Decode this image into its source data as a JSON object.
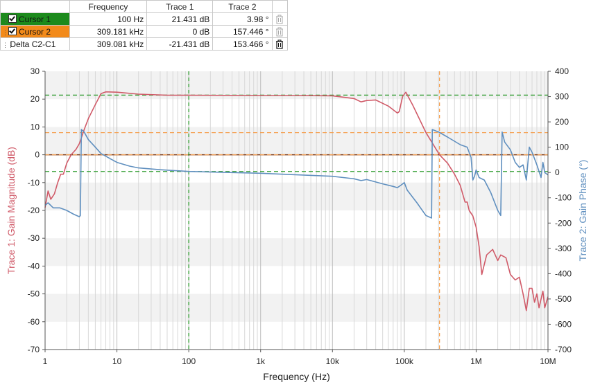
{
  "cursor_table": {
    "headers": [
      "",
      "Frequency",
      "Trace 1",
      "Trace 2"
    ],
    "rows": [
      {
        "label": "Cursor 1",
        "checked": true,
        "frequency": "100 Hz",
        "trace1": "21.431 dB",
        "trace2": "3.98 °",
        "color": "#1c8a1c"
      },
      {
        "label": "Cursor 2",
        "checked": true,
        "frequency": "309.181 kHz",
        "trace1": "0 dB",
        "trace2": "157.446 °",
        "color": "#f28a1a"
      },
      {
        "label": "Delta C2-C1",
        "checked": false,
        "frequency": "309.081 kHz",
        "trace1": "-21.431 dB",
        "trace2": "153.466 °"
      }
    ]
  },
  "chart_data": {
    "type": "line",
    "xlabel": "Frequency (Hz)",
    "ylabel_left": "Trace 1: Gain Magnitude (dB)",
    "ylabel_right": "Trace 2: Gain Phase (°)",
    "x_scale": "log",
    "xlim": [
      1,
      10000000
    ],
    "ylim_left": [
      -70,
      30
    ],
    "ylim_right": [
      -700,
      400
    ],
    "x_ticks": [
      {
        "value": 1,
        "label": "1"
      },
      {
        "value": 10,
        "label": "10"
      },
      {
        "value": 100,
        "label": "100"
      },
      {
        "value": 1000,
        "label": "1k"
      },
      {
        "value": 10000,
        "label": "10k"
      },
      {
        "value": 100000,
        "label": "100k"
      },
      {
        "value": 1000000,
        "label": "1M"
      },
      {
        "value": 10000000,
        "label": "10M"
      }
    ],
    "y_ticks_left": [
      30,
      20,
      10,
      0,
      -10,
      -20,
      -30,
      -40,
      -50,
      -60,
      -70
    ],
    "y_ticks_right": [
      400,
      300,
      200,
      100,
      0,
      -100,
      -200,
      -300,
      -400,
      -500,
      -600,
      -700
    ],
    "grid": true,
    "colors": {
      "trace1": "#d05a68",
      "trace2": "#5f8fbf",
      "cursor1": "#2e9c2e",
      "cursor2": "#f5a050",
      "zero_line": "#7a3a1a",
      "band": "#f2f2f2"
    },
    "cursors": [
      {
        "x": 100,
        "trace1": 21.431,
        "trace2": 3.98,
        "color": "#2e9c2e"
      },
      {
        "x": 309181,
        "trace1": 0,
        "trace2": 157.446,
        "color": "#f5a050"
      }
    ],
    "series": [
      {
        "axis": "left",
        "color": "#d05a68",
        "points": [
          [
            1,
            -19
          ],
          [
            1.1,
            -13
          ],
          [
            1.2,
            -16
          ],
          [
            1.35,
            -14
          ],
          [
            1.5,
            -10
          ],
          [
            1.65,
            -7
          ],
          [
            1.8,
            -7
          ],
          [
            2,
            -3
          ],
          [
            2.3,
            0
          ],
          [
            2.7,
            2
          ],
          [
            3,
            4
          ],
          [
            3.5,
            9
          ],
          [
            4,
            13
          ],
          [
            5,
            18
          ],
          [
            6,
            22
          ],
          [
            7,
            22.6
          ],
          [
            10,
            22.5
          ],
          [
            20,
            21.8
          ],
          [
            50,
            21.4
          ],
          [
            100,
            21.4
          ],
          [
            1000,
            21.3
          ],
          [
            3000,
            21.3
          ],
          [
            10000,
            21.2
          ],
          [
            20000,
            20.2
          ],
          [
            25000,
            19
          ],
          [
            30000,
            19.5
          ],
          [
            40000,
            19.7
          ],
          [
            60000,
            17.5
          ],
          [
            80000,
            15
          ],
          [
            85000,
            15.5
          ],
          [
            95000,
            21
          ],
          [
            105000,
            22.5
          ],
          [
            130000,
            18
          ],
          [
            200000,
            8
          ],
          [
            309181,
            0
          ],
          [
            400000,
            -3
          ],
          [
            500000,
            -7
          ],
          [
            600000,
            -11
          ],
          [
            700000,
            -17
          ],
          [
            750000,
            -17
          ],
          [
            800000,
            -20
          ],
          [
            900000,
            -22
          ],
          [
            1000000,
            -26
          ],
          [
            1100000,
            -33
          ],
          [
            1200000,
            -43
          ],
          [
            1400000,
            -36
          ],
          [
            1700000,
            -34
          ],
          [
            2000000,
            -38
          ],
          [
            2200000,
            -36
          ],
          [
            2600000,
            -37
          ],
          [
            3000000,
            -43
          ],
          [
            3500000,
            -45
          ],
          [
            4000000,
            -44
          ],
          [
            4500000,
            -50
          ],
          [
            5000000,
            -56
          ],
          [
            5500000,
            -48
          ],
          [
            6000000,
            -48
          ],
          [
            6500000,
            -53
          ],
          [
            7000000,
            -50
          ],
          [
            7500000,
            -55
          ],
          [
            8500000,
            -49
          ],
          [
            9000000,
            -55
          ],
          [
            10000000,
            -51
          ]
        ]
      },
      {
        "axis": "right",
        "color": "#5f8fbf",
        "points": [
          [
            1,
            -130
          ],
          [
            1.1,
            -120
          ],
          [
            1.3,
            -140
          ],
          [
            1.6,
            -140
          ],
          [
            2,
            -150
          ],
          [
            2.5,
            -165
          ],
          [
            3,
            -175
          ],
          [
            3.1,
            -170
          ],
          [
            3.2,
            170
          ],
          [
            3.5,
            160
          ],
          [
            4,
            130
          ],
          [
            5,
            100
          ],
          [
            6,
            75
          ],
          [
            8,
            55
          ],
          [
            10,
            40
          ],
          [
            15,
            25
          ],
          [
            20,
            18
          ],
          [
            40,
            11
          ],
          [
            100,
            4
          ],
          [
            1000,
            -3
          ],
          [
            10000,
            -15
          ],
          [
            20000,
            -25
          ],
          [
            25000,
            -32
          ],
          [
            30000,
            -28
          ],
          [
            50000,
            -45
          ],
          [
            70000,
            -55
          ],
          [
            80000,
            -60
          ],
          [
            90000,
            -50
          ],
          [
            100000,
            -40
          ],
          [
            110000,
            -70
          ],
          [
            150000,
            -120
          ],
          [
            200000,
            -170
          ],
          [
            240000,
            -180
          ],
          [
            245000,
            170
          ],
          [
            300000,
            160
          ],
          [
            400000,
            140
          ],
          [
            600000,
            110
          ],
          [
            750000,
            100
          ],
          [
            850000,
            60
          ],
          [
            900000,
            -30
          ],
          [
            950000,
            -15
          ],
          [
            1000000,
            10
          ],
          [
            1100000,
            -20
          ],
          [
            1300000,
            -30
          ],
          [
            1600000,
            -80
          ],
          [
            2000000,
            -150
          ],
          [
            2200000,
            -170
          ],
          [
            2300000,
            160
          ],
          [
            2500000,
            120
          ],
          [
            3000000,
            90
          ],
          [
            3500000,
            40
          ],
          [
            4000000,
            20
          ],
          [
            4500000,
            30
          ],
          [
            5000000,
            -30
          ],
          [
            5500000,
            100
          ],
          [
            6000000,
            80
          ],
          [
            7000000,
            30
          ],
          [
            8000000,
            -20
          ],
          [
            8500000,
            40
          ],
          [
            9000000,
            0
          ],
          [
            10000000,
            -10
          ]
        ]
      }
    ]
  }
}
